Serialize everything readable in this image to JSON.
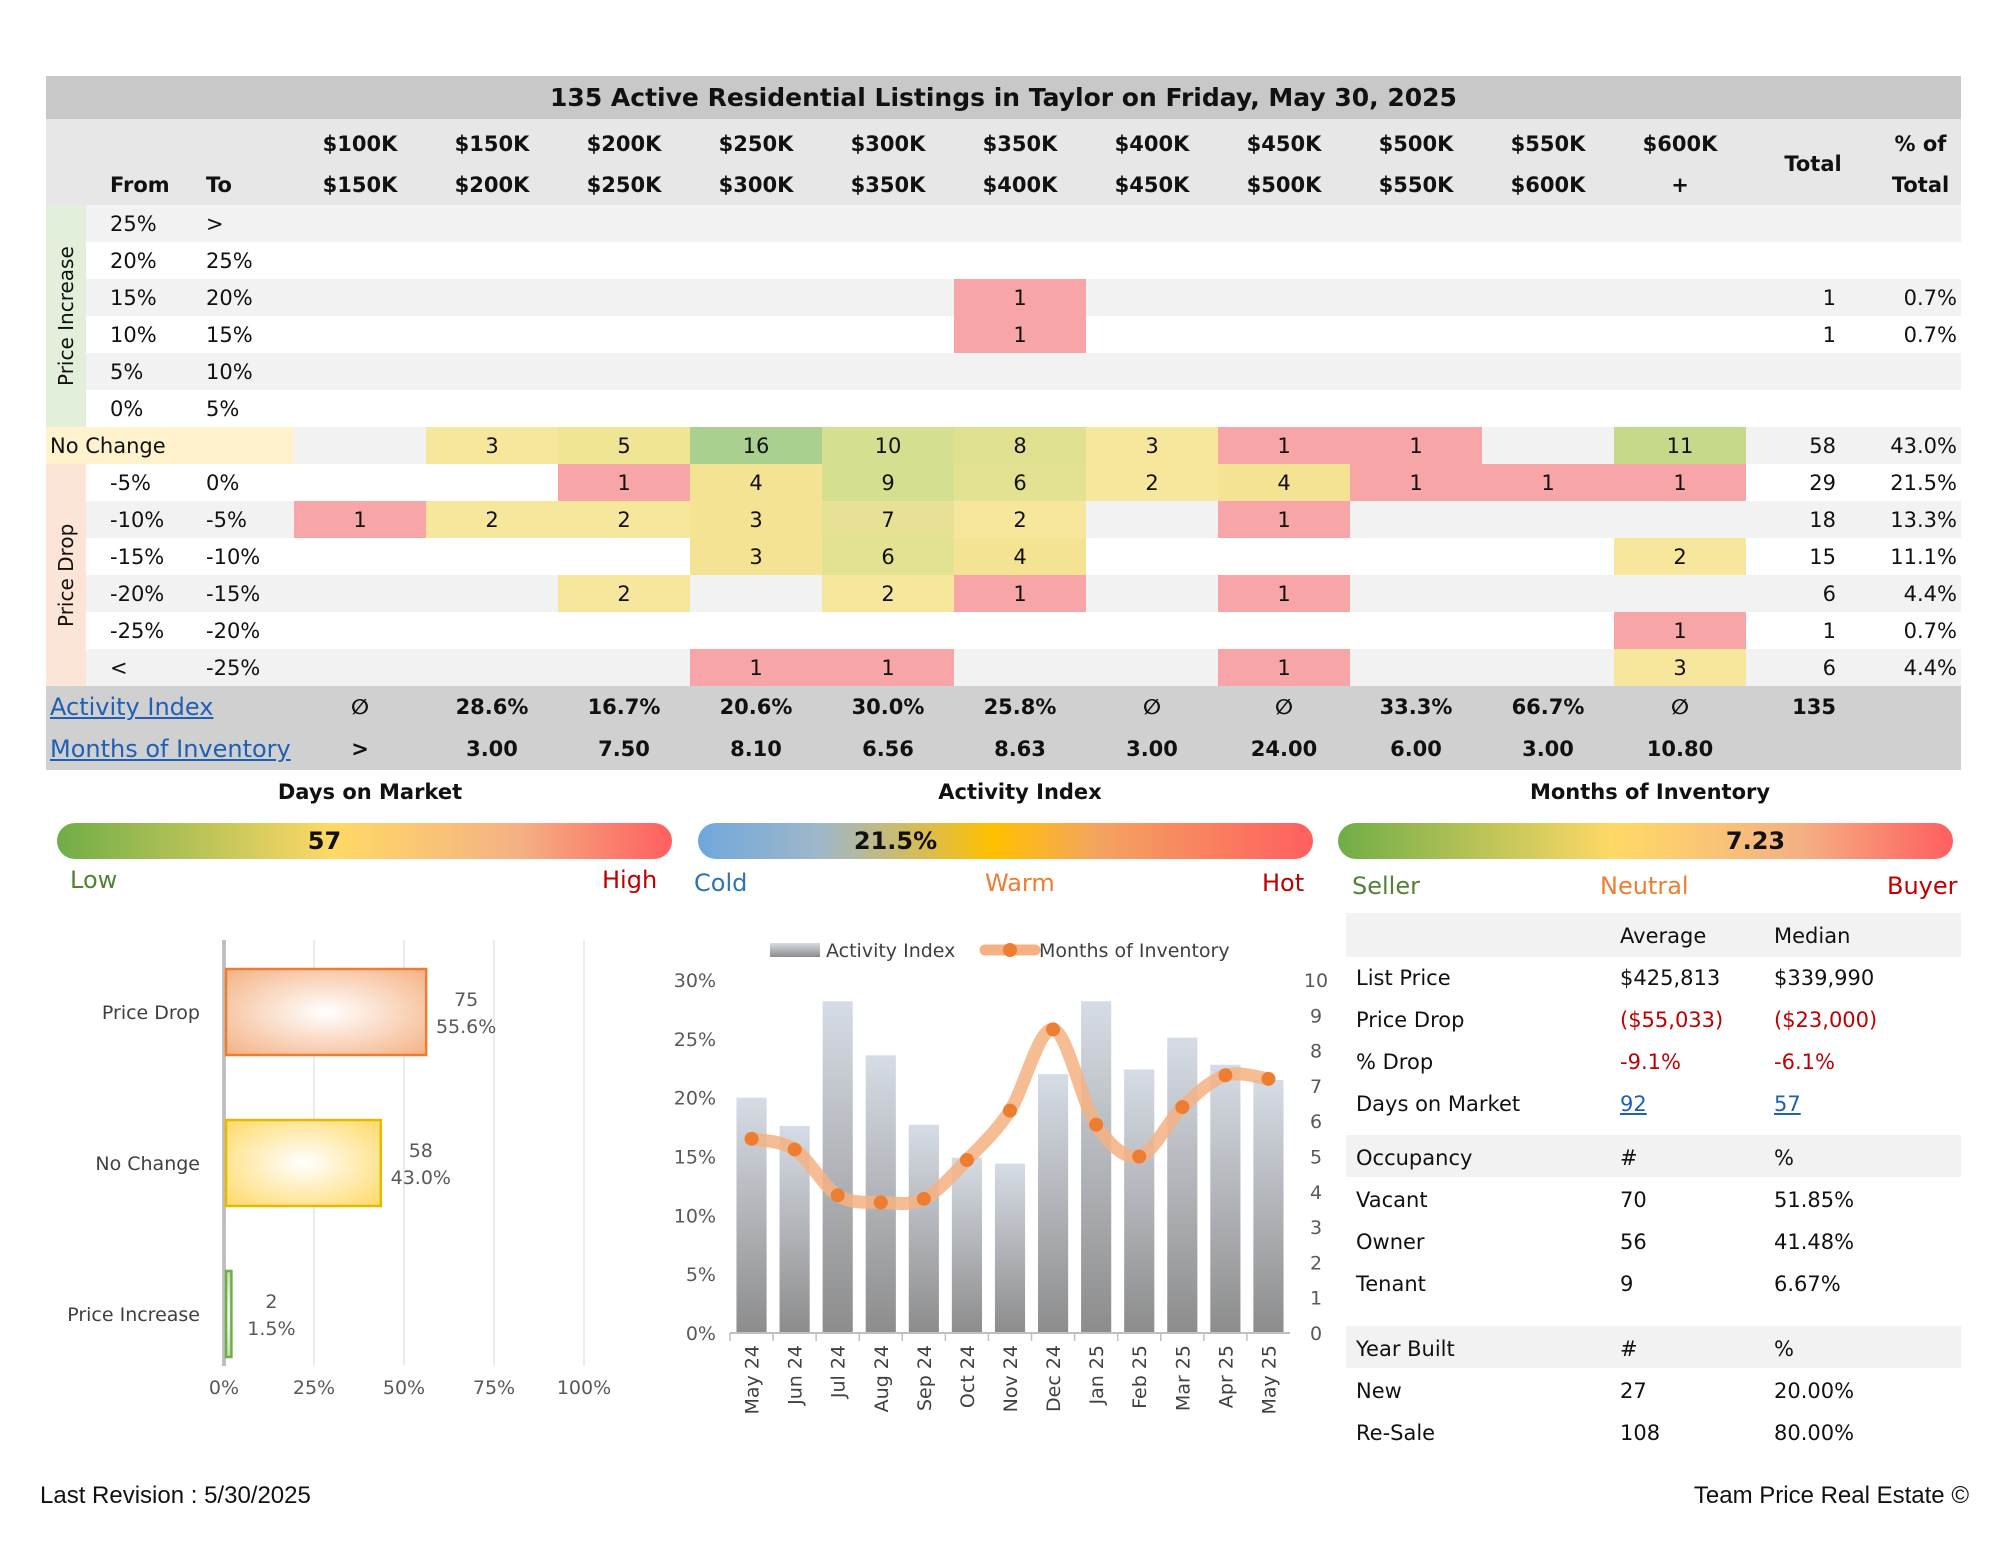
{
  "title": "135 Active Residential Listings in Taylor on Friday, May 30, 2025",
  "table": {
    "from_label": "From",
    "to_label": "To",
    "price_ranges_top": [
      "$100K",
      "$150K",
      "$200K",
      "$250K",
      "$300K",
      "$350K",
      "$400K",
      "$450K",
      "$500K",
      "$550K",
      "$600K"
    ],
    "price_ranges_bottom": [
      "$150K",
      "$200K",
      "$250K",
      "$300K",
      "$350K",
      "$400K",
      "$450K",
      "$500K",
      "$550K",
      "$600K",
      "+"
    ],
    "total_label": "Total",
    "pct_label_top": "% of",
    "pct_label_bottom": "Total",
    "group_increase": "Price Increase",
    "group_drop": "Price Drop",
    "rows": [
      {
        "from": "25%",
        "to": ">",
        "cells": [
          "",
          "",
          "",
          "",
          "",
          "",
          "",
          "",
          "",
          "",
          ""
        ],
        "total": "",
        "pct": ""
      },
      {
        "from": "20%",
        "to": "25%",
        "cells": [
          "",
          "",
          "",
          "",
          "",
          "",
          "",
          "",
          "",
          "",
          ""
        ],
        "total": "",
        "pct": ""
      },
      {
        "from": "15%",
        "to": "20%",
        "cells": [
          "",
          "",
          "",
          "",
          "",
          "1",
          "",
          "",
          "",
          "",
          ""
        ],
        "total": "1",
        "pct": "0.7%"
      },
      {
        "from": "10%",
        "to": "15%",
        "cells": [
          "",
          "",
          "",
          "",
          "",
          "1",
          "",
          "",
          "",
          "",
          ""
        ],
        "total": "1",
        "pct": "0.7%"
      },
      {
        "from": "5%",
        "to": "10%",
        "cells": [
          "",
          "",
          "",
          "",
          "",
          "",
          "",
          "",
          "",
          "",
          ""
        ],
        "total": "",
        "pct": ""
      },
      {
        "from": "0%",
        "to": "5%",
        "cells": [
          "",
          "",
          "",
          "",
          "",
          "",
          "",
          "",
          "",
          "",
          ""
        ],
        "total": "",
        "pct": ""
      },
      {
        "from": "No Change",
        "to": "",
        "cells": [
          "",
          "3",
          "5",
          "16",
          "10",
          "8",
          "3",
          "1",
          "1",
          "",
          "11"
        ],
        "total": "58",
        "pct": "43.0%"
      },
      {
        "from": "-5%",
        "to": "0%",
        "cells": [
          "",
          "",
          "1",
          "4",
          "9",
          "6",
          "2",
          "4",
          "1",
          "1",
          "1"
        ],
        "total": "29",
        "pct": "21.5%"
      },
      {
        "from": "-10%",
        "to": "-5%",
        "cells": [
          "1",
          "2",
          "2",
          "3",
          "7",
          "2",
          "",
          "1",
          "",
          "",
          ""
        ],
        "total": "18",
        "pct": "13.3%"
      },
      {
        "from": "-15%",
        "to": "-10%",
        "cells": [
          "",
          "",
          "",
          "3",
          "6",
          "4",
          "",
          "",
          "",
          "",
          "2"
        ],
        "total": "15",
        "pct": "11.1%"
      },
      {
        "from": "-20%",
        "to": "-15%",
        "cells": [
          "",
          "",
          "2",
          "",
          "2",
          "1",
          "",
          "1",
          "",
          "",
          ""
        ],
        "total": "6",
        "pct": "4.4%"
      },
      {
        "from": "-25%",
        "to": "-20%",
        "cells": [
          "",
          "",
          "",
          "",
          "",
          "",
          "",
          "",
          "",
          "",
          "1"
        ],
        "total": "1",
        "pct": "0.7%"
      },
      {
        "from": "<",
        "to": "-25%",
        "cells": [
          "",
          "",
          "",
          "1",
          "1",
          "",
          "",
          "1",
          "",
          "",
          "3"
        ],
        "total": "6",
        "pct": "4.4%"
      }
    ],
    "cell_colors": [
      [
        "",
        "",
        "",
        "",
        "",
        "",
        "",
        "",
        "",
        "",
        ""
      ],
      [
        "",
        "",
        "",
        "",
        "",
        "",
        "",
        "",
        "",
        "",
        ""
      ],
      [
        "",
        "",
        "",
        "",
        "",
        "#f8a5a8",
        "",
        "",
        "",
        "",
        ""
      ],
      [
        "",
        "",
        "",
        "",
        "",
        "#f8a5a8",
        "",
        "",
        "",
        "",
        ""
      ],
      [
        "",
        "",
        "",
        "",
        "",
        "",
        "",
        "",
        "",
        "",
        ""
      ],
      [
        "",
        "",
        "",
        "",
        "",
        "",
        "",
        "",
        "",
        "",
        ""
      ],
      [
        "#f2f2f2",
        "#f7e79c",
        "#f0e594",
        "#a9d08e",
        "#d4df8f",
        "#dfe191",
        "#f7e79c",
        "#f8a5a8",
        "#f8a5a8",
        "#f2f2f2",
        "#c6d98a"
      ],
      [
        "",
        "",
        "#f8a5a8",
        "#f4e393",
        "#d4df8f",
        "#e3e293",
        "#f7e79c",
        "#f4e393",
        "#f8a5a8",
        "#f8a5a8",
        "#f8a5a8"
      ],
      [
        "#f8a5a8",
        "#f7e79c",
        "#f7e79c",
        "#f4e393",
        "#e6e195",
        "#f7e79c",
        "",
        "#f8a5a8",
        "",
        "",
        ""
      ],
      [
        "",
        "",
        "",
        "#f4e393",
        "#e3e293",
        "#f4e393",
        "",
        "",
        "",
        "",
        "#f7e79c"
      ],
      [
        "",
        "",
        "#f7e79c",
        "",
        "#f7e79c",
        "#f8a5a8",
        "",
        "#f8a5a8",
        "",
        "",
        ""
      ],
      [
        "",
        "",
        "",
        "",
        "",
        "",
        "",
        "",
        "",
        "",
        "#f8a5a8"
      ],
      [
        "",
        "",
        "",
        "#f8a5a8",
        "#f8a5a8",
        "",
        "",
        "#f8a5a8",
        "",
        "",
        "#f7e79c"
      ]
    ],
    "activity_index_label": "Activity Index",
    "activity_index": [
      "∅",
      "28.6%",
      "16.7%",
      "20.6%",
      "30.0%",
      "25.8%",
      "∅",
      "∅",
      "33.3%",
      "66.7%",
      "∅"
    ],
    "activity_total": "135",
    "moi_label": "Months of Inventory",
    "moi": [
      ">",
      "3.00",
      "7.50",
      "8.10",
      "6.56",
      "8.63",
      "3.00",
      "24.00",
      "6.00",
      "3.00",
      "10.80"
    ]
  },
  "gauges": {
    "dom": {
      "title": "Days on Market",
      "value": "57",
      "low": "Low",
      "high": "High",
      "level": 0.45
    },
    "activity": {
      "title": "Activity Index",
      "value": "21.5%",
      "cold": "Cold",
      "warm": "Warm",
      "hot": "Hot",
      "level": 0.33
    },
    "moi": {
      "title": "Months of Inventory",
      "value": "7.23",
      "seller": "Seller",
      "neutral": "Neutral",
      "buyer": "Buyer",
      "level": 0.68
    }
  },
  "chart_data": [
    {
      "type": "bar",
      "orientation": "horizontal",
      "categories": [
        "Price Drop",
        "No Change",
        "Price Increase"
      ],
      "values": [
        75,
        58,
        2
      ],
      "percents": [
        55.6,
        43.0,
        1.5
      ],
      "value_labels": [
        "75",
        "58",
        "2"
      ],
      "percent_labels": [
        "55.6%",
        "43.0%",
        "1.5%"
      ],
      "colors": [
        "#f4b183",
        "#ffd966",
        "#a9d18e"
      ],
      "xticks": [
        "0%",
        "25%",
        "50%",
        "75%",
        "100%"
      ],
      "xlim": [
        0,
        100
      ],
      "grid": true
    },
    {
      "type": "bar+line",
      "categories": [
        "May 24",
        "Jun 24",
        "Jul 24",
        "Aug 24",
        "Sep 24",
        "Oct 24",
        "Nov 24",
        "Dec 24",
        "Jan 25",
        "Feb 25",
        "Mar 25",
        "Apr 25",
        "May 25"
      ],
      "series": [
        {
          "name": "Activity Index",
          "type": "bar",
          "axis": "left",
          "values": [
            20.0,
            17.6,
            28.2,
            23.6,
            17.7,
            14.9,
            14.4,
            22.0,
            28.2,
            22.4,
            25.1,
            22.8,
            21.5
          ]
        },
        {
          "name": "Months of Inventory",
          "type": "line",
          "axis": "right",
          "values": [
            5.5,
            5.2,
            3.9,
            3.7,
            3.8,
            4.9,
            6.3,
            8.6,
            5.9,
            5.0,
            6.4,
            7.3,
            7.2
          ]
        }
      ],
      "ylim_left": [
        0,
        30
      ],
      "yticks_left": [
        "0%",
        "5%",
        "10%",
        "15%",
        "20%",
        "25%",
        "30%"
      ],
      "ylim_right": [
        0,
        10
      ],
      "yticks_right": [
        "0",
        "1",
        "2",
        "3",
        "4",
        "5",
        "6",
        "7",
        "8",
        "9",
        "10"
      ],
      "legend": "top"
    }
  ],
  "stats": {
    "avg_label": "Average",
    "median_label": "Median",
    "rows": [
      {
        "label": "List Price",
        "avg": "$425,813",
        "median": "$339,990",
        "style": "normal"
      },
      {
        "label": "Price Drop",
        "avg": "($55,033)",
        "median": "($23,000)",
        "style": "red"
      },
      {
        "label": "% Drop",
        "avg": "-9.1%",
        "median": "-6.1%",
        "style": "red"
      },
      {
        "label": "Days on Market",
        "avg": "92",
        "median": "57",
        "style": "link"
      }
    ],
    "occupancy": {
      "label": "Occupancy",
      "h1": "#",
      "h2": "%",
      "rows": [
        {
          "label": "Vacant",
          "n": "70",
          "p": "51.85%"
        },
        {
          "label": "Owner",
          "n": "56",
          "p": "41.48%"
        },
        {
          "label": "Tenant",
          "n": "9",
          "p": "6.67%"
        }
      ]
    },
    "year_built": {
      "label": "Year Built",
      "h1": "#",
      "h2": "%",
      "rows": [
        {
          "label": "New",
          "n": "27",
          "p": "20.00%"
        },
        {
          "label": "Re-Sale",
          "n": "108",
          "p": "80.00%"
        }
      ]
    }
  },
  "footer": {
    "left": "Last Revision : 5/30/2025",
    "right": "Team Price Real Estate ©"
  }
}
